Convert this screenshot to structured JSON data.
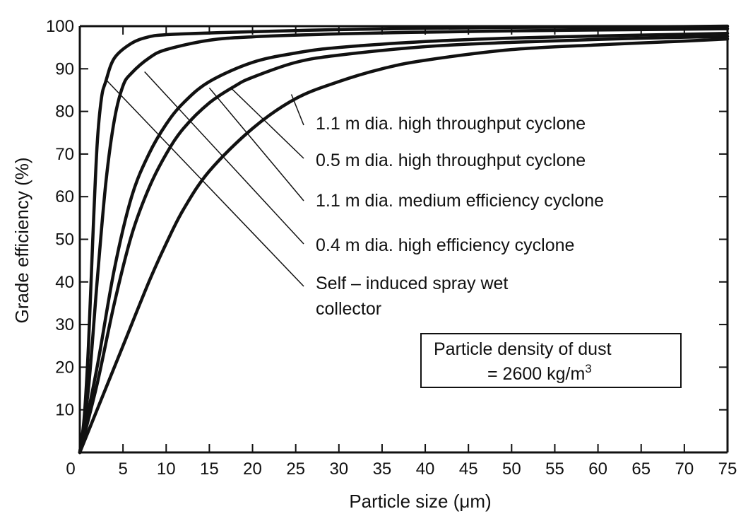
{
  "chart_data": {
    "type": "line",
    "title": "",
    "xlabel": "Particle size (μm)",
    "ylabel": "Grade efficiency (%)",
    "xlim": [
      0,
      75
    ],
    "ylim": [
      0,
      100
    ],
    "x_ticks": [
      "0",
      "5",
      "10",
      "15",
      "20",
      "25",
      "30",
      "35",
      "40",
      "45",
      "50",
      "55",
      "60",
      "65",
      "70",
      "75"
    ],
    "y_ticks": [
      "10",
      "20",
      "30",
      "40",
      "50",
      "60",
      "70",
      "80",
      "90",
      "100"
    ],
    "grid": false,
    "legend": "leader-line labels, right of curves",
    "series": [
      {
        "name": "Self – induced spray wet collector",
        "x": [
          0,
          0.5,
          1,
          1.5,
          2,
          2.5,
          3,
          4,
          6,
          8,
          10,
          15,
          20,
          30,
          40,
          50,
          60,
          70,
          75
        ],
        "values": [
          0,
          8,
          25,
          50,
          72,
          83,
          87,
          92.5,
          96,
          97.5,
          98,
          98.4,
          98.7,
          99.2,
          99.5,
          99.7,
          99.8,
          99.9,
          100
        ]
      },
      {
        "name": "0.4 m dia. high efficiency cyclone",
        "x": [
          0,
          1,
          2,
          3,
          4,
          5,
          6,
          8,
          10,
          15,
          20,
          30,
          40,
          50,
          60,
          70,
          75
        ],
        "values": [
          0,
          15,
          40,
          63,
          78,
          86,
          89,
          92.5,
          94.5,
          96.7,
          97.5,
          98.2,
          98.6,
          98.9,
          99.1,
          99.3,
          99.4
        ]
      },
      {
        "name": "1.1 m dia. medium efficiency cyclone",
        "x": [
          0,
          2,
          4,
          6,
          8,
          10,
          12,
          15,
          20,
          25,
          30,
          40,
          50,
          60,
          70,
          75
        ],
        "values": [
          0,
          20,
          43,
          60,
          70,
          77,
          82,
          87,
          91.5,
          93.7,
          95,
          96.4,
          97.2,
          97.7,
          98.1,
          98.3
        ]
      },
      {
        "name": "0.5 m dia. high throughput cyclone",
        "x": [
          0,
          2,
          4,
          6,
          8,
          10,
          12,
          15,
          18,
          20,
          25,
          30,
          40,
          50,
          60,
          70,
          75
        ],
        "values": [
          0,
          16,
          35,
          51,
          62,
          70,
          76,
          82,
          86,
          88,
          91.5,
          93.2,
          95.2,
          96.2,
          96.9,
          97.4,
          97.6
        ]
      },
      {
        "name": "1.1 m dia. high throughput cyclone",
        "x": [
          0,
          2,
          5,
          8,
          10,
          12,
          15,
          20,
          25,
          30,
          35,
          40,
          50,
          60,
          70,
          75
        ],
        "values": [
          0,
          10,
          25,
          40,
          49,
          57,
          66,
          76,
          83,
          87,
          90,
          92,
          94.5,
          95.6,
          96.5,
          97
        ]
      }
    ],
    "note": [
      "Particle density of dust",
      "= 2600 kg/m",
      "3"
    ]
  }
}
